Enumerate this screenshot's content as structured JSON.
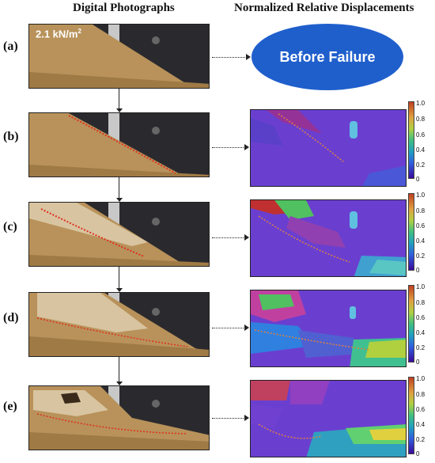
{
  "titles": {
    "left": "Digital Photographs",
    "right": "Normalized Relative Displacements"
  },
  "load_label": "2.1 kN/m",
  "load_exponent": "2",
  "before_failure": "Before Failure",
  "rows": [
    {
      "label": "(a)"
    },
    {
      "label": "(b)"
    },
    {
      "label": "(c)"
    },
    {
      "label": "(d)"
    },
    {
      "label": "(e)"
    }
  ],
  "colorbar_ticks": [
    "1.0",
    "0.8",
    "0.6",
    "0.4",
    "0.2",
    "0"
  ],
  "colors": {
    "ellipse": "#1f5fcc",
    "map_background": "#6a3fd0",
    "failure_line": "#e05030",
    "soil": "#b8925a"
  }
}
